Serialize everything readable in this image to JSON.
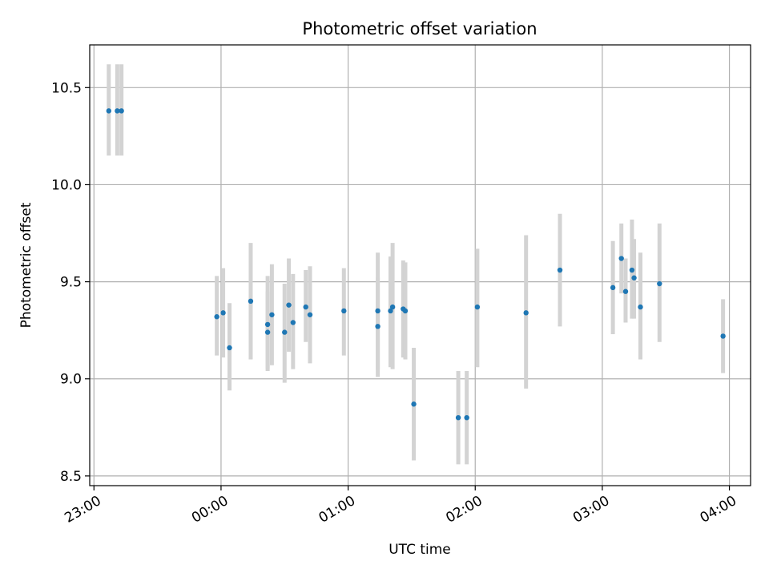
{
  "chart_data": {
    "type": "scatter",
    "title": "Photometric offset variation",
    "xlabel": "UTC time",
    "ylabel": "Photometric offset",
    "x_unit": "UTC time (HH:MM)",
    "xlim": [
      "22:58",
      "04:10"
    ],
    "ylim": [
      8.45,
      10.72
    ],
    "x_ticks": [
      "23:00",
      "00:00",
      "01:00",
      "02:00",
      "03:00",
      "04:00"
    ],
    "y_ticks": [
      "8.5",
      "9.0",
      "9.5",
      "10.0",
      "10.5"
    ],
    "grid": true,
    "marker_color": "#1f77b4",
    "errorbar_color": "#d3d3d3",
    "series": [
      {
        "points": [
          {
            "x": "23:07",
            "y": 10.38,
            "lo": 10.15,
            "hi": 10.62
          },
          {
            "x": "23:11",
            "y": 10.38,
            "lo": 10.15,
            "hi": 10.62
          },
          {
            "x": "23:13",
            "y": 10.38,
            "lo": 10.15,
            "hi": 10.62
          },
          {
            "x": "23:58",
            "y": 9.32,
            "lo": 9.12,
            "hi": 9.53
          },
          {
            "x": "00:01",
            "y": 9.34,
            "lo": 9.11,
            "hi": 9.57
          },
          {
            "x": "00:04",
            "y": 9.16,
            "lo": 8.94,
            "hi": 9.39
          },
          {
            "x": "00:14",
            "y": 9.4,
            "lo": 9.1,
            "hi": 9.7
          },
          {
            "x": "00:22",
            "y": 9.28,
            "lo": 9.04,
            "hi": 9.53
          },
          {
            "x": "00:22",
            "y": 9.24,
            "lo": 9.05,
            "hi": 9.45
          },
          {
            "x": "00:24",
            "y": 9.33,
            "lo": 9.07,
            "hi": 9.59
          },
          {
            "x": "00:30",
            "y": 9.24,
            "lo": 8.98,
            "hi": 9.49
          },
          {
            "x": "00:32",
            "y": 9.38,
            "lo": 9.14,
            "hi": 9.62
          },
          {
            "x": "00:34",
            "y": 9.29,
            "lo": 9.05,
            "hi": 9.54
          },
          {
            "x": "00:40",
            "y": 9.37,
            "lo": 9.19,
            "hi": 9.56
          },
          {
            "x": "00:42",
            "y": 9.33,
            "lo": 9.08,
            "hi": 9.58
          },
          {
            "x": "00:58",
            "y": 9.35,
            "lo": 9.12,
            "hi": 9.57
          },
          {
            "x": "01:14",
            "y": 9.27,
            "lo": 9.01,
            "hi": 9.52
          },
          {
            "x": "01:14",
            "y": 9.35,
            "lo": 9.05,
            "hi": 9.65
          },
          {
            "x": "01:20",
            "y": 9.35,
            "lo": 9.06,
            "hi": 9.63
          },
          {
            "x": "01:21",
            "y": 9.37,
            "lo": 9.05,
            "hi": 9.7
          },
          {
            "x": "01:26",
            "y": 9.36,
            "lo": 9.11,
            "hi": 9.61
          },
          {
            "x": "01:27",
            "y": 9.35,
            "lo": 9.1,
            "hi": 9.6
          },
          {
            "x": "01:31",
            "y": 8.87,
            "lo": 8.58,
            "hi": 9.16
          },
          {
            "x": "01:52",
            "y": 8.8,
            "lo": 8.56,
            "hi": 9.04
          },
          {
            "x": "01:56",
            "y": 8.8,
            "lo": 8.56,
            "hi": 9.04
          },
          {
            "x": "02:01",
            "y": 9.37,
            "lo": 9.06,
            "hi": 9.67
          },
          {
            "x": "02:24",
            "y": 9.34,
            "lo": 8.95,
            "hi": 9.74
          },
          {
            "x": "02:40",
            "y": 9.56,
            "lo": 9.27,
            "hi": 9.85
          },
          {
            "x": "03:05",
            "y": 9.47,
            "lo": 9.23,
            "hi": 9.71
          },
          {
            "x": "03:09",
            "y": 9.62,
            "lo": 9.44,
            "hi": 9.8
          },
          {
            "x": "03:11",
            "y": 9.45,
            "lo": 9.29,
            "hi": 9.62
          },
          {
            "x": "03:14",
            "y": 9.56,
            "lo": 9.31,
            "hi": 9.82
          },
          {
            "x": "03:15",
            "y": 9.52,
            "lo": 9.31,
            "hi": 9.72
          },
          {
            "x": "03:18",
            "y": 9.37,
            "lo": 9.1,
            "hi": 9.65
          },
          {
            "x": "03:27",
            "y": 9.49,
            "lo": 9.19,
            "hi": 9.8
          },
          {
            "x": "03:57",
            "y": 9.22,
            "lo": 9.03,
            "hi": 9.41
          }
        ]
      }
    ]
  }
}
